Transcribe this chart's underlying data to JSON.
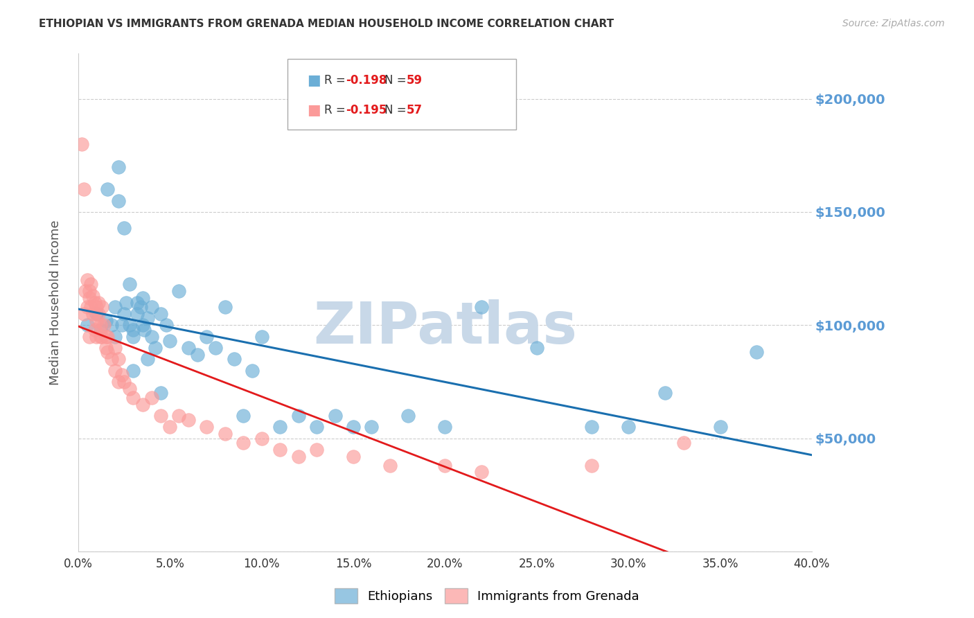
{
  "title": "ETHIOPIAN VS IMMIGRANTS FROM GRENADA MEDIAN HOUSEHOLD INCOME CORRELATION CHART",
  "source": "Source: ZipAtlas.com",
  "ylabel": "Median Household Income",
  "y_ticks": [
    0,
    50000,
    100000,
    150000,
    200000
  ],
  "y_tick_labels": [
    "",
    "$50,000",
    "$100,000",
    "$150,000",
    "$200,000"
  ],
  "ylim": [
    0,
    220000
  ],
  "xlim": [
    0.0,
    0.4
  ],
  "legend_label1": "Ethiopians",
  "legend_label2": "Immigrants from Grenada",
  "blue_color": "#6baed6",
  "pink_color": "#fb9a99",
  "trendline_blue": "#1a6faf",
  "trendline_pink": "#e31a1c",
  "trendline_dashed_color": "#c0c0c0",
  "watermark_color": "#c8d8e8",
  "background_color": "#ffffff",
  "title_color": "#333333",
  "axis_label_color": "#555555",
  "ytick_color": "#5b9bd5",
  "xtick_color": "#333333",
  "grid_color": "#cccccc",
  "blue_scatter_x": [
    0.005,
    0.01,
    0.012,
    0.015,
    0.016,
    0.018,
    0.02,
    0.02,
    0.022,
    0.022,
    0.024,
    0.025,
    0.025,
    0.026,
    0.028,
    0.028,
    0.03,
    0.03,
    0.03,
    0.032,
    0.032,
    0.034,
    0.035,
    0.035,
    0.036,
    0.038,
    0.038,
    0.04,
    0.04,
    0.042,
    0.045,
    0.045,
    0.048,
    0.05,
    0.055,
    0.06,
    0.065,
    0.07,
    0.075,
    0.08,
    0.085,
    0.09,
    0.095,
    0.1,
    0.11,
    0.12,
    0.13,
    0.14,
    0.15,
    0.16,
    0.18,
    0.2,
    0.22,
    0.25,
    0.28,
    0.3,
    0.32,
    0.35,
    0.37
  ],
  "blue_scatter_y": [
    100000,
    105000,
    98000,
    102000,
    160000,
    100000,
    95000,
    108000,
    170000,
    155000,
    100000,
    105000,
    143000,
    110000,
    118000,
    100000,
    98000,
    80000,
    95000,
    110000,
    105000,
    108000,
    100000,
    112000,
    98000,
    103000,
    85000,
    95000,
    108000,
    90000,
    105000,
    70000,
    100000,
    93000,
    115000,
    90000,
    87000,
    95000,
    90000,
    108000,
    85000,
    60000,
    80000,
    95000,
    55000,
    60000,
    55000,
    60000,
    55000,
    55000,
    60000,
    55000,
    108000,
    90000,
    55000,
    55000,
    70000,
    55000,
    88000
  ],
  "pink_scatter_x": [
    0.002,
    0.003,
    0.003,
    0.004,
    0.005,
    0.005,
    0.006,
    0.006,
    0.006,
    0.007,
    0.007,
    0.008,
    0.008,
    0.009,
    0.009,
    0.01,
    0.01,
    0.01,
    0.011,
    0.011,
    0.012,
    0.012,
    0.013,
    0.013,
    0.014,
    0.015,
    0.015,
    0.016,
    0.016,
    0.018,
    0.02,
    0.02,
    0.022,
    0.022,
    0.024,
    0.025,
    0.028,
    0.03,
    0.035,
    0.04,
    0.045,
    0.05,
    0.055,
    0.06,
    0.07,
    0.08,
    0.09,
    0.1,
    0.11,
    0.12,
    0.13,
    0.15,
    0.17,
    0.2,
    0.22,
    0.28,
    0.33
  ],
  "pink_scatter_y": [
    180000,
    160000,
    105000,
    115000,
    120000,
    108000,
    115000,
    112000,
    95000,
    118000,
    108000,
    113000,
    105000,
    110000,
    98000,
    108000,
    102000,
    95000,
    110000,
    105000,
    100000,
    95000,
    108000,
    95000,
    100000,
    95000,
    90000,
    88000,
    95000,
    85000,
    90000,
    80000,
    85000,
    75000,
    78000,
    75000,
    72000,
    68000,
    65000,
    68000,
    60000,
    55000,
    60000,
    58000,
    55000,
    52000,
    48000,
    50000,
    45000,
    42000,
    45000,
    42000,
    38000,
    38000,
    35000,
    38000,
    48000
  ]
}
